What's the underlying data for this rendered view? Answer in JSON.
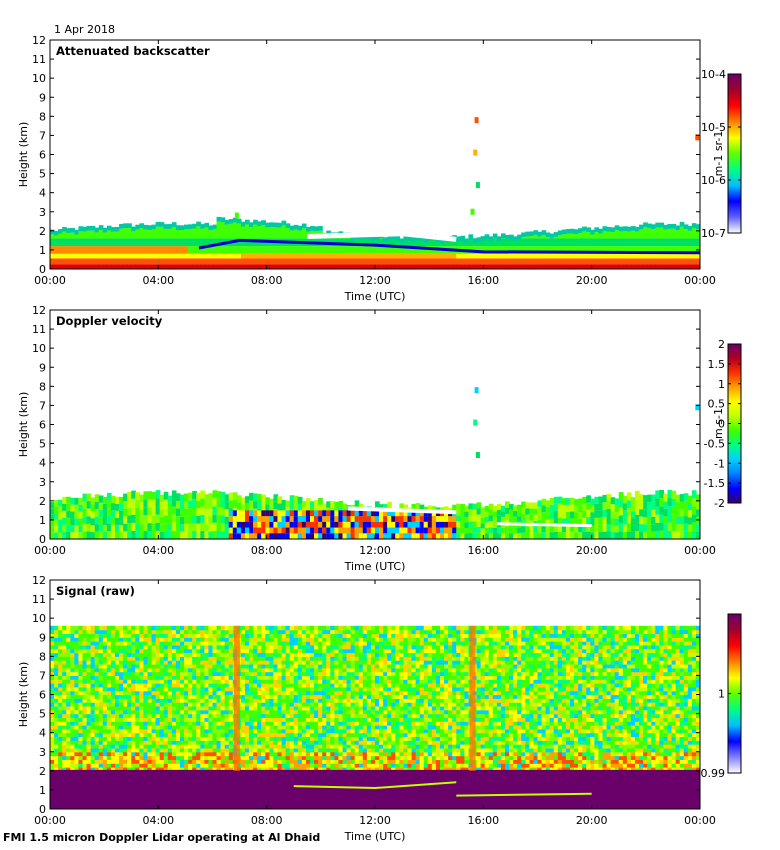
{
  "date_label": "1 Apr 2018",
  "footer": "FMI 1.5 micron Doppler Lidar operating at Al Dhaid",
  "colors": {
    "background": "#ffffff",
    "no_data": "#ffffff",
    "frame": "#000000"
  },
  "chart_data": [
    {
      "type": "heatmap",
      "title": "Attenuated backscatter",
      "xlabel": "Time (UTC)",
      "ylabel": "Height (km)",
      "xticks": [
        "00:00",
        "04:00",
        "08:00",
        "12:00",
        "16:00",
        "20:00",
        "00:00"
      ],
      "yticks": [
        "0",
        "1",
        "2",
        "3",
        "4",
        "5",
        "6",
        "7",
        "8",
        "9",
        "10",
        "11",
        "12"
      ],
      "xlim_hours": [
        0,
        24
      ],
      "ylim": [
        0,
        12
      ],
      "colorbar": {
        "scale": "log",
        "range": [
          1e-07,
          0.0001
        ],
        "ticks": [
          "10-7",
          "10-6",
          "10-5",
          "10-4"
        ],
        "unit": "m-1 sr-1"
      },
      "layers": [
        {
          "name": "surface layer",
          "t_start": 0,
          "t_end": 24,
          "h_bottom": 0,
          "h_top": 0.6,
          "value": "1e-4.3"
        },
        {
          "name": "boundary layer",
          "t_start": 0,
          "t_end": 24,
          "h_bottom": 0.6,
          "h_top": 2.2,
          "value": "1e-5.3"
        },
        {
          "name": "cloud echo",
          "t": 15.7,
          "h": 7.8,
          "value": "1e-4.3"
        },
        {
          "name": "cloud echo",
          "t": 23.9,
          "h": 6.9,
          "value": "1e-4.1"
        }
      ]
    },
    {
      "type": "heatmap",
      "title": "Doppler velocity",
      "xlabel": "Time (UTC)",
      "ylabel": "Height (km)",
      "xticks": [
        "00:00",
        "04:00",
        "08:00",
        "12:00",
        "16:00",
        "20:00",
        "00:00"
      ],
      "yticks": [
        "0",
        "1",
        "2",
        "3",
        "4",
        "5",
        "6",
        "7",
        "8",
        "9",
        "10",
        "11",
        "12"
      ],
      "xlim_hours": [
        0,
        24
      ],
      "ylim": [
        0,
        12
      ],
      "colorbar": {
        "scale": "linear",
        "range": [
          -2,
          2
        ],
        "ticks": [
          "-2",
          "-1.5",
          "-1",
          "-0.5",
          "0",
          "0.5",
          "1",
          "1.5",
          "2"
        ],
        "unit": "m s-1"
      },
      "layers": [
        {
          "name": "boundary layer",
          "t_start": 0,
          "t_end": 24,
          "h_bottom": 0,
          "h_top": 2.2,
          "value": 0
        },
        {
          "name": "convective mixing",
          "t_start": 6.5,
          "t_end": 15,
          "h_bottom": 0,
          "h_top": 1.5,
          "value": "±1.8"
        }
      ]
    },
    {
      "type": "heatmap",
      "title": "Signal (raw)",
      "xlabel": "Time (UTC)",
      "ylabel": "Height (km)",
      "xticks": [
        "00:00",
        "04:00",
        "08:00",
        "12:00",
        "16:00",
        "20:00",
        "00:00"
      ],
      "yticks": [
        "0",
        "1",
        "2",
        "3",
        "4",
        "5",
        "6",
        "7",
        "8",
        "9",
        "10",
        "11",
        "12"
      ],
      "xlim_hours": [
        0,
        24
      ],
      "ylim": [
        0,
        12
      ],
      "colorbar": {
        "scale": "linear",
        "range": [
          0.99,
          1.01
        ],
        "ticks": [
          "0.99",
          "1"
        ],
        "unit": ""
      },
      "layers": [
        {
          "name": "strong signal",
          "t_start": 0,
          "t_end": 24,
          "h_bottom": 0,
          "h_top": 2.0,
          "value": ">1.01"
        },
        {
          "name": "noise background",
          "t_start": 0,
          "t_end": 24,
          "h_bottom": 2.0,
          "h_top": 9.6,
          "value": 1.0
        }
      ]
    }
  ]
}
